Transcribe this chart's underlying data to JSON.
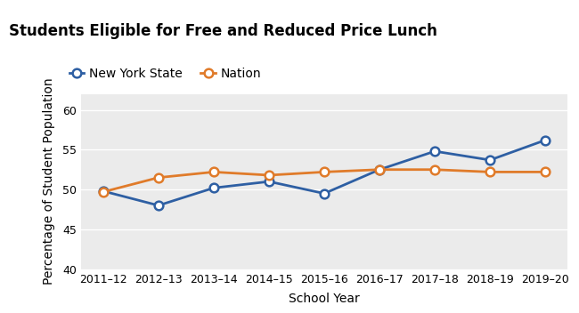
{
  "title": "Students Eligible for Free and Reduced Price Lunch",
  "xlabel": "School Year",
  "ylabel": "Percentage of Student Population",
  "years": [
    "2011–12",
    "2012–13",
    "2013–14",
    "2014–15",
    "2015–16",
    "2016–17",
    "2017–18",
    "2018–19",
    "2019–20"
  ],
  "ny_values": [
    49.8,
    48.0,
    50.2,
    51.0,
    49.5,
    52.5,
    54.8,
    53.7,
    56.2
  ],
  "nation_values": [
    49.7,
    51.5,
    52.2,
    51.8,
    52.2,
    52.5,
    52.5,
    52.2,
    52.2
  ],
  "ny_color": "#2E5FA3",
  "nation_color": "#E07B2A",
  "ny_label": "New York State",
  "nation_label": "Nation",
  "ylim": [
    40,
    62
  ],
  "yticks": [
    40,
    45,
    50,
    55,
    60
  ],
  "bg_title": "#D8D8D8",
  "bg_fig": "#FFFFFF",
  "bg_plot": "#EBEBEB",
  "grid_color": "#FFFFFF",
  "marker_size": 7,
  "linewidth": 2.0,
  "title_fontsize": 12,
  "axis_label_fontsize": 10,
  "tick_fontsize": 9,
  "legend_fontsize": 10
}
